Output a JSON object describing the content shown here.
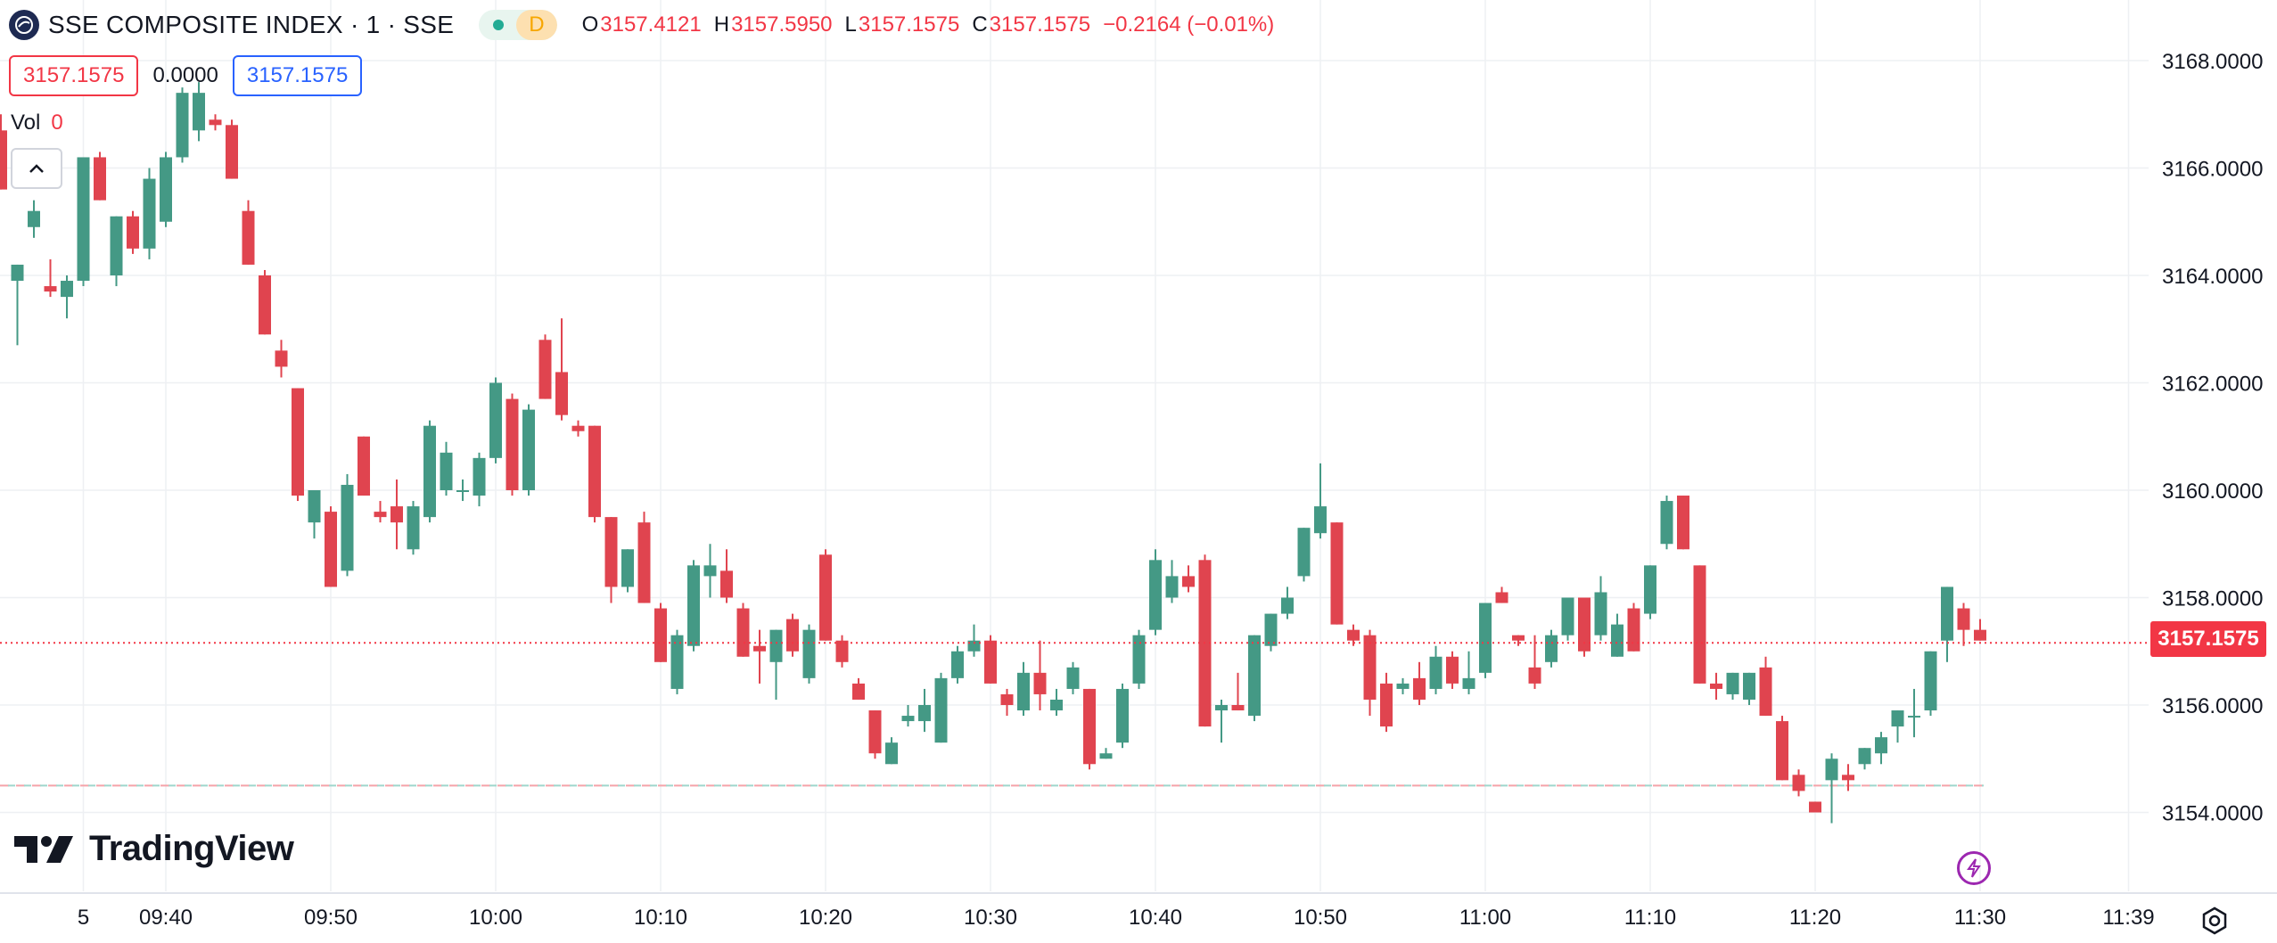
{
  "header": {
    "symbol_title": "SSE COMPOSITE INDEX · 1 · SSE",
    "status_letter": "D",
    "ohlc": {
      "o_label": "O",
      "o_value": "3157.4121",
      "h_label": "H",
      "h_value": "3157.5950",
      "l_label": "L",
      "l_value": "3157.1575",
      "c_label": "C",
      "c_value": "3157.1575",
      "change": "−0.2164 (−0.01%)"
    },
    "price_box_left": "3157.1575",
    "price_change_value": "0.0000",
    "price_box_right": "3157.1575",
    "volume": {
      "label": "Vol",
      "value": "0"
    }
  },
  "branding": {
    "logo_text": "TradingView"
  },
  "last_price_tag": "3157.1575",
  "colors": {
    "up": "#26a69a",
    "up_body": "#449985",
    "down": "#e0444f",
    "grid": "#eef0f3",
    "axis_text": "#131722",
    "price_line": "#f23645",
    "base_line_red": "#f5a3a9",
    "base_line_green": "#9fd6cc"
  },
  "icons": {
    "symbol_logo": "sse-logo-icon",
    "collapse": "chevron-up-icon",
    "lightning": "lightning-icon",
    "settings": "gear-icon",
    "brand": "tradingview-logo-icon"
  },
  "chart_data": {
    "type": "candlestick",
    "y_axis": {
      "min": 3152.6,
      "max": 3168.9,
      "ticks": [
        3154,
        3156,
        3158,
        3160,
        3162,
        3164,
        3166,
        3168
      ],
      "tick_labels": [
        "3154.0000",
        "3156.0000",
        "3158.0000",
        "3160.0000",
        "3162.0000",
        "3164.0000",
        "3166.0000",
        "3168.0000"
      ],
      "position": "right"
    },
    "x_axis": {
      "tick_minutes": [
        -25,
        -20,
        -10,
        0,
        10,
        20,
        30,
        40,
        50,
        60,
        70,
        80,
        90,
        99
      ],
      "tick_labels": [
        "5",
        "09:40",
        "09:50",
        "10:00",
        "10:10",
        "10:20",
        "10:30",
        "10:40",
        "10:50",
        "11:00",
        "11:10",
        "11:20",
        "11:30",
        "11:39"
      ],
      "unit": "minutes from 10:00, 1-minute candles"
    },
    "grid": true,
    "last_price": 3157.1575,
    "base_price": 3154.5,
    "candles": [
      {
        "t": -30,
        "o": 3166.7,
        "h": 3167.0,
        "l": 3165.6,
        "c": 3165.6
      },
      {
        "t": -29,
        "o": 3163.9,
        "h": 3164.2,
        "l": 3162.7,
        "c": 3164.2
      },
      {
        "t": -28,
        "o": 3164.9,
        "h": 3165.4,
        "l": 3164.7,
        "c": 3165.2
      },
      {
        "t": -27,
        "o": 3163.8,
        "h": 3164.3,
        "l": 3163.6,
        "c": 3163.7
      },
      {
        "t": -26,
        "o": 3163.6,
        "h": 3164.0,
        "l": 3163.2,
        "c": 3163.9
      },
      {
        "t": -25,
        "o": 3163.9,
        "h": 3166.2,
        "l": 3163.8,
        "c": 3166.2
      },
      {
        "t": -24,
        "o": 3166.2,
        "h": 3166.3,
        "l": 3165.4,
        "c": 3165.4
      },
      {
        "t": -23,
        "o": 3164.0,
        "h": 3165.1,
        "l": 3163.8,
        "c": 3165.1
      },
      {
        "t": -22,
        "o": 3165.1,
        "h": 3165.2,
        "l": 3164.4,
        "c": 3164.5
      },
      {
        "t": -21,
        "o": 3164.5,
        "h": 3166.0,
        "l": 3164.3,
        "c": 3165.8
      },
      {
        "t": -20,
        "o": 3165.0,
        "h": 3166.3,
        "l": 3164.9,
        "c": 3166.2
      },
      {
        "t": -19,
        "o": 3166.2,
        "h": 3167.5,
        "l": 3166.1,
        "c": 3167.4
      },
      {
        "t": -18,
        "o": 3166.7,
        "h": 3167.6,
        "l": 3166.5,
        "c": 3167.4
      },
      {
        "t": -17,
        "o": 3166.9,
        "h": 3167.0,
        "l": 3166.7,
        "c": 3166.8
      },
      {
        "t": -16,
        "o": 3166.8,
        "h": 3166.9,
        "l": 3165.8,
        "c": 3165.8
      },
      {
        "t": -15,
        "o": 3165.2,
        "h": 3165.4,
        "l": 3164.2,
        "c": 3164.2
      },
      {
        "t": -14,
        "o": 3164.0,
        "h": 3164.1,
        "l": 3162.9,
        "c": 3162.9
      },
      {
        "t": -13,
        "o": 3162.6,
        "h": 3162.8,
        "l": 3162.1,
        "c": 3162.3
      },
      {
        "t": -12,
        "o": 3161.9,
        "h": 3161.9,
        "l": 3159.8,
        "c": 3159.9
      },
      {
        "t": -11,
        "o": 3159.4,
        "h": 3160.0,
        "l": 3159.1,
        "c": 3160.0
      },
      {
        "t": -10,
        "o": 3159.6,
        "h": 3159.7,
        "l": 3158.2,
        "c": 3158.2
      },
      {
        "t": -9,
        "o": 3158.5,
        "h": 3160.3,
        "l": 3158.4,
        "c": 3160.1
      },
      {
        "t": -8,
        "o": 3161.0,
        "h": 3161.0,
        "l": 3159.9,
        "c": 3159.9
      },
      {
        "t": -7,
        "o": 3159.6,
        "h": 3159.8,
        "l": 3159.4,
        "c": 3159.5
      },
      {
        "t": -6,
        "o": 3159.7,
        "h": 3160.2,
        "l": 3158.9,
        "c": 3159.4
      },
      {
        "t": -5,
        "o": 3158.9,
        "h": 3159.8,
        "l": 3158.8,
        "c": 3159.7
      },
      {
        "t": -4,
        "o": 3159.5,
        "h": 3161.3,
        "l": 3159.4,
        "c": 3161.2
      },
      {
        "t": -3,
        "o": 3160.0,
        "h": 3160.9,
        "l": 3159.9,
        "c": 3160.7
      },
      {
        "t": -2,
        "o": 3160.0,
        "h": 3160.2,
        "l": 3159.8,
        "c": 3160.0
      },
      {
        "t": -1,
        "o": 3159.9,
        "h": 3160.7,
        "l": 3159.7,
        "c": 3160.6
      },
      {
        "t": 0,
        "o": 3160.6,
        "h": 3162.1,
        "l": 3160.5,
        "c": 3162.0
      },
      {
        "t": 1,
        "o": 3161.7,
        "h": 3161.8,
        "l": 3159.9,
        "c": 3160.0
      },
      {
        "t": 2,
        "o": 3160.0,
        "h": 3161.6,
        "l": 3159.9,
        "c": 3161.5
      },
      {
        "t": 3,
        "o": 3162.8,
        "h": 3162.9,
        "l": 3161.7,
        "c": 3161.7
      },
      {
        "t": 4,
        "o": 3162.2,
        "h": 3163.2,
        "l": 3161.3,
        "c": 3161.4
      },
      {
        "t": 5,
        "o": 3161.2,
        "h": 3161.3,
        "l": 3161.0,
        "c": 3161.1
      },
      {
        "t": 6,
        "o": 3161.2,
        "h": 3161.2,
        "l": 3159.4,
        "c": 3159.5
      },
      {
        "t": 7,
        "o": 3159.5,
        "h": 3159.5,
        "l": 3157.9,
        "c": 3158.2
      },
      {
        "t": 8,
        "o": 3158.2,
        "h": 3158.9,
        "l": 3158.1,
        "c": 3158.9
      },
      {
        "t": 9,
        "o": 3159.4,
        "h": 3159.6,
        "l": 3157.9,
        "c": 3157.9
      },
      {
        "t": 10,
        "o": 3157.8,
        "h": 3157.9,
        "l": 3156.8,
        "c": 3156.8
      },
      {
        "t": 11,
        "o": 3156.3,
        "h": 3157.4,
        "l": 3156.2,
        "c": 3157.3
      },
      {
        "t": 12,
        "o": 3157.1,
        "h": 3158.7,
        "l": 3157.0,
        "c": 3158.6
      },
      {
        "t": 13,
        "o": 3158.4,
        "h": 3159.0,
        "l": 3158.0,
        "c": 3158.6
      },
      {
        "t": 14,
        "o": 3158.5,
        "h": 3158.9,
        "l": 3157.9,
        "c": 3158.0
      },
      {
        "t": 15,
        "o": 3157.8,
        "h": 3157.9,
        "l": 3156.9,
        "c": 3156.9
      },
      {
        "t": 16,
        "o": 3157.1,
        "h": 3157.4,
        "l": 3156.4,
        "c": 3157.0
      },
      {
        "t": 17,
        "o": 3156.8,
        "h": 3157.4,
        "l": 3156.1,
        "c": 3157.4
      },
      {
        "t": 18,
        "o": 3157.6,
        "h": 3157.7,
        "l": 3156.9,
        "c": 3157.0
      },
      {
        "t": 19,
        "o": 3156.5,
        "h": 3157.5,
        "l": 3156.4,
        "c": 3157.4
      },
      {
        "t": 20,
        "o": 3158.8,
        "h": 3158.9,
        "l": 3157.2,
        "c": 3157.2
      },
      {
        "t": 21,
        "o": 3157.2,
        "h": 3157.3,
        "l": 3156.7,
        "c": 3156.8
      },
      {
        "t": 22,
        "o": 3156.4,
        "h": 3156.5,
        "l": 3156.1,
        "c": 3156.1
      },
      {
        "t": 23,
        "o": 3155.9,
        "h": 3155.9,
        "l": 3155.0,
        "c": 3155.1
      },
      {
        "t": 24,
        "o": 3154.9,
        "h": 3155.4,
        "l": 3154.9,
        "c": 3155.3
      },
      {
        "t": 25,
        "o": 3155.7,
        "h": 3156.0,
        "l": 3155.6,
        "c": 3155.8
      },
      {
        "t": 26,
        "o": 3155.7,
        "h": 3156.3,
        "l": 3155.5,
        "c": 3156.0
      },
      {
        "t": 27,
        "o": 3155.3,
        "h": 3156.6,
        "l": 3155.3,
        "c": 3156.5
      },
      {
        "t": 28,
        "o": 3156.5,
        "h": 3157.1,
        "l": 3156.4,
        "c": 3157.0
      },
      {
        "t": 29,
        "o": 3157.0,
        "h": 3157.5,
        "l": 3156.9,
        "c": 3157.2
      },
      {
        "t": 30,
        "o": 3157.2,
        "h": 3157.3,
        "l": 3156.4,
        "c": 3156.4
      },
      {
        "t": 31,
        "o": 3156.2,
        "h": 3156.3,
        "l": 3155.8,
        "c": 3156.0
      },
      {
        "t": 32,
        "o": 3155.9,
        "h": 3156.8,
        "l": 3155.8,
        "c": 3156.6
      },
      {
        "t": 33,
        "o": 3156.6,
        "h": 3157.2,
        "l": 3155.9,
        "c": 3156.2
      },
      {
        "t": 34,
        "o": 3155.9,
        "h": 3156.3,
        "l": 3155.8,
        "c": 3156.1
      },
      {
        "t": 35,
        "o": 3156.3,
        "h": 3156.8,
        "l": 3156.2,
        "c": 3156.7
      },
      {
        "t": 36,
        "o": 3156.3,
        "h": 3156.3,
        "l": 3154.8,
        "c": 3154.9
      },
      {
        "t": 37,
        "o": 3155.0,
        "h": 3155.2,
        "l": 3155.0,
        "c": 3155.1
      },
      {
        "t": 38,
        "o": 3155.3,
        "h": 3156.4,
        "l": 3155.2,
        "c": 3156.3
      },
      {
        "t": 39,
        "o": 3156.4,
        "h": 3157.4,
        "l": 3156.3,
        "c": 3157.3
      },
      {
        "t": 40,
        "o": 3157.4,
        "h": 3158.9,
        "l": 3157.3,
        "c": 3158.7
      },
      {
        "t": 41,
        "o": 3158.0,
        "h": 3158.7,
        "l": 3157.9,
        "c": 3158.4
      },
      {
        "t": 42,
        "o": 3158.4,
        "h": 3158.6,
        "l": 3158.1,
        "c": 3158.2
      },
      {
        "t": 43,
        "o": 3158.7,
        "h": 3158.8,
        "l": 3155.6,
        "c": 3155.6
      },
      {
        "t": 44,
        "o": 3155.9,
        "h": 3156.1,
        "l": 3155.3,
        "c": 3156.0
      },
      {
        "t": 45,
        "o": 3156.0,
        "h": 3156.6,
        "l": 3155.9,
        "c": 3155.9
      },
      {
        "t": 46,
        "o": 3155.8,
        "h": 3157.3,
        "l": 3155.7,
        "c": 3157.3
      },
      {
        "t": 47,
        "o": 3157.1,
        "h": 3157.7,
        "l": 3157.0,
        "c": 3157.7
      },
      {
        "t": 48,
        "o": 3157.7,
        "h": 3158.2,
        "l": 3157.6,
        "c": 3158.0
      },
      {
        "t": 49,
        "o": 3158.4,
        "h": 3159.3,
        "l": 3158.3,
        "c": 3159.3
      },
      {
        "t": 50,
        "o": 3159.2,
        "h": 3160.5,
        "l": 3159.1,
        "c": 3159.7
      },
      {
        "t": 51,
        "o": 3159.4,
        "h": 3159.4,
        "l": 3157.5,
        "c": 3157.5
      },
      {
        "t": 52,
        "o": 3157.4,
        "h": 3157.5,
        "l": 3157.1,
        "c": 3157.2
      },
      {
        "t": 53,
        "o": 3157.3,
        "h": 3157.4,
        "l": 3155.8,
        "c": 3156.1
      },
      {
        "t": 54,
        "o": 3156.4,
        "h": 3156.6,
        "l": 3155.5,
        "c": 3155.6
      },
      {
        "t": 55,
        "o": 3156.3,
        "h": 3156.5,
        "l": 3156.2,
        "c": 3156.4
      },
      {
        "t": 56,
        "o": 3156.5,
        "h": 3156.8,
        "l": 3156.0,
        "c": 3156.1
      },
      {
        "t": 57,
        "o": 3156.3,
        "h": 3157.1,
        "l": 3156.2,
        "c": 3156.9
      },
      {
        "t": 58,
        "o": 3156.9,
        "h": 3157.0,
        "l": 3156.3,
        "c": 3156.4
      },
      {
        "t": 59,
        "o": 3156.3,
        "h": 3157.0,
        "l": 3156.2,
        "c": 3156.5
      },
      {
        "t": 60,
        "o": 3156.6,
        "h": 3157.9,
        "l": 3156.5,
        "c": 3157.9
      },
      {
        "t": 61,
        "o": 3158.1,
        "h": 3158.2,
        "l": 3157.9,
        "c": 3157.9
      },
      {
        "t": 62,
        "o": 3157.3,
        "h": 3157.3,
        "l": 3157.1,
        "c": 3157.2
      },
      {
        "t": 63,
        "o": 3156.7,
        "h": 3157.3,
        "l": 3156.3,
        "c": 3156.4
      },
      {
        "t": 64,
        "o": 3156.8,
        "h": 3157.4,
        "l": 3156.7,
        "c": 3157.3
      },
      {
        "t": 65,
        "o": 3157.3,
        "h": 3158.0,
        "l": 3157.2,
        "c": 3158.0
      },
      {
        "t": 66,
        "o": 3158.0,
        "h": 3158.0,
        "l": 3156.9,
        "c": 3157.0
      },
      {
        "t": 67,
        "o": 3157.3,
        "h": 3158.4,
        "l": 3157.2,
        "c": 3158.1
      },
      {
        "t": 68,
        "o": 3156.9,
        "h": 3157.7,
        "l": 3156.9,
        "c": 3157.5
      },
      {
        "t": 69,
        "o": 3157.8,
        "h": 3157.9,
        "l": 3157.0,
        "c": 3157.0
      },
      {
        "t": 70,
        "o": 3157.7,
        "h": 3158.6,
        "l": 3157.6,
        "c": 3158.6
      },
      {
        "t": 71,
        "o": 3159.0,
        "h": 3159.9,
        "l": 3158.9,
        "c": 3159.8
      },
      {
        "t": 72,
        "o": 3159.9,
        "h": 3159.9,
        "l": 3158.9,
        "c": 3158.9
      },
      {
        "t": 73,
        "o": 3158.6,
        "h": 3158.6,
        "l": 3156.4,
        "c": 3156.4
      },
      {
        "t": 74,
        "o": 3156.4,
        "h": 3156.6,
        "l": 3156.1,
        "c": 3156.3
      },
      {
        "t": 75,
        "o": 3156.2,
        "h": 3156.6,
        "l": 3156.1,
        "c": 3156.6
      },
      {
        "t": 76,
        "o": 3156.1,
        "h": 3156.6,
        "l": 3156.0,
        "c": 3156.6
      },
      {
        "t": 77,
        "o": 3156.7,
        "h": 3156.9,
        "l": 3155.8,
        "c": 3155.8
      },
      {
        "t": 78,
        "o": 3155.7,
        "h": 3155.8,
        "l": 3154.6,
        "c": 3154.6
      },
      {
        "t": 79,
        "o": 3154.7,
        "h": 3154.8,
        "l": 3154.3,
        "c": 3154.4
      },
      {
        "t": 80,
        "o": 3154.2,
        "h": 3154.2,
        "l": 3154.0,
        "c": 3154.0
      },
      {
        "t": 81,
        "o": 3154.6,
        "h": 3155.1,
        "l": 3153.8,
        "c": 3155.0
      },
      {
        "t": 82,
        "o": 3154.7,
        "h": 3154.9,
        "l": 3154.4,
        "c": 3154.6
      },
      {
        "t": 83,
        "o": 3154.9,
        "h": 3155.2,
        "l": 3154.8,
        "c": 3155.2
      },
      {
        "t": 84,
        "o": 3155.1,
        "h": 3155.5,
        "l": 3154.9,
        "c": 3155.4
      },
      {
        "t": 85,
        "o": 3155.6,
        "h": 3155.9,
        "l": 3155.3,
        "c": 3155.9
      },
      {
        "t": 86,
        "o": 3155.8,
        "h": 3156.3,
        "l": 3155.4,
        "c": 3155.8
      },
      {
        "t": 87,
        "o": 3155.9,
        "h": 3157.0,
        "l": 3155.8,
        "c": 3157.0
      },
      {
        "t": 88,
        "o": 3157.2,
        "h": 3158.2,
        "l": 3156.8,
        "c": 3158.2
      },
      {
        "t": 89,
        "o": 3157.8,
        "h": 3157.9,
        "l": 3157.1,
        "c": 3157.4
      },
      {
        "t": 90,
        "o": 3157.4,
        "h": 3157.6,
        "l": 3157.2,
        "c": 3157.2
      }
    ]
  }
}
